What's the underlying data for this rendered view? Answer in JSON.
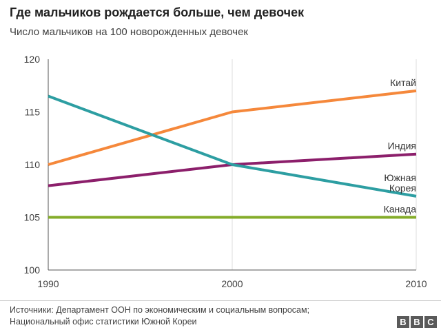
{
  "chart_data": {
    "type": "line",
    "title": "Где мальчиков рождается больше, чем девочек",
    "subtitle": "Число мальчиков на 100 новорожденных девочек",
    "xlabel": "",
    "ylabel": "",
    "x": [
      1990,
      2000,
      2010
    ],
    "x_tick_labels": [
      "1990",
      "2000",
      "2010"
    ],
    "ylim": [
      100,
      120
    ],
    "y_ticks": [
      100,
      105,
      110,
      115,
      120
    ],
    "y_tick_labels": [
      "100",
      "105",
      "110",
      "115",
      "120"
    ],
    "grid": "vertical",
    "legend": "inline labels at right end of each line",
    "series": [
      {
        "name": "Китай",
        "label_lines": [
          "Китай"
        ],
        "values": [
          110,
          115,
          117
        ],
        "color": "#f5883b"
      },
      {
        "name": "Индия",
        "label_lines": [
          "Индия"
        ],
        "values": [
          108,
          110,
          111
        ],
        "color": "#8c1f6b"
      },
      {
        "name": "Южная Корея",
        "label_lines": [
          "Южная",
          "Корея"
        ],
        "values": [
          116.5,
          110,
          107
        ],
        "color": "#2d9ea2"
      },
      {
        "name": "Канада",
        "label_lines": [
          "Канада"
        ],
        "values": [
          105,
          105,
          105
        ],
        "color": "#84ac2a"
      }
    ]
  },
  "footer": {
    "source_line1": "Источники: Департамент ООН по экономическим и социальным вопросам;",
    "source_line2": "Национальный офис статистики Южной Кореи",
    "logo_letters": [
      "B",
      "B",
      "C"
    ]
  }
}
